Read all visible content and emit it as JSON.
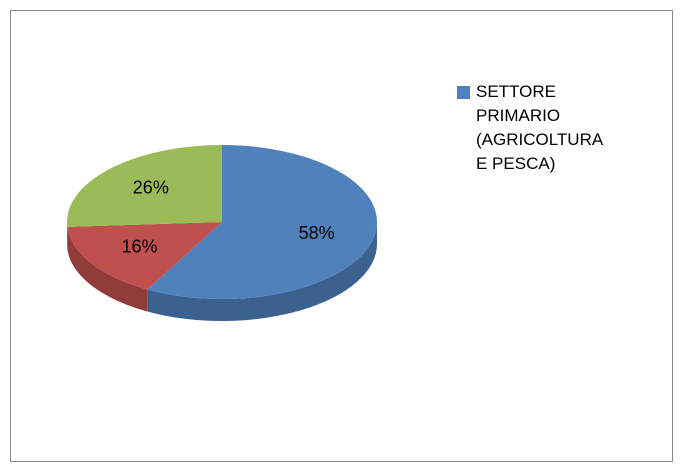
{
  "chart_data": {
    "type": "pie",
    "categories": [
      "SETTORE PRIMARIO (AGRICOLTURA E PESCA)",
      null,
      null
    ],
    "values": [
      58,
      16,
      26
    ],
    "value_labels": [
      "58%",
      "16%",
      "26%"
    ],
    "colors": [
      "#4f81bd",
      "#c0504d",
      "#9bbb59"
    ],
    "legend": "right"
  }
}
